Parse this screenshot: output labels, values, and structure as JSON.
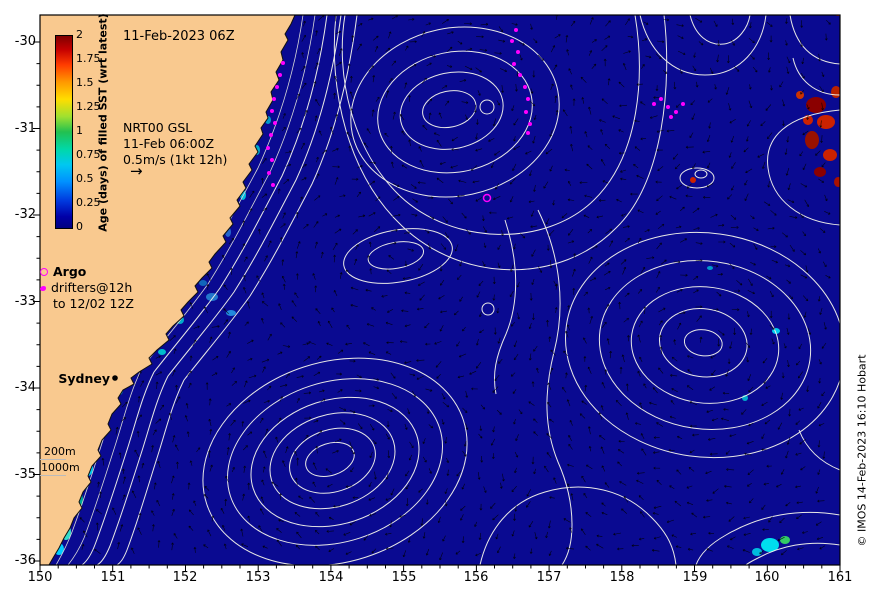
{
  "header": {
    "date": "11-Feb-2023 06Z"
  },
  "colorbar": {
    "title": "Age (days) of filled SST (wrt latest)",
    "ticks": [
      "2",
      "1.75",
      "1.5",
      "1.25",
      "1",
      "0.75",
      "0.5",
      "0.25",
      "0"
    ]
  },
  "info": {
    "model": "NRT00 GSL",
    "time": "11-Feb 06:00Z",
    "scale": "0.5m/s (1kt 12h)",
    "arrow_glyph": "→"
  },
  "legend": {
    "argo_label": "Argo",
    "drifters_label": "drifters@12h",
    "drifters_range": "to 12/02 12Z"
  },
  "map_labels": {
    "city": "Sydney",
    "isobath_200": "200m",
    "isobath_1000": "1000m"
  },
  "credit": "© IMOS 14-Feb-2023 16:10 Hobart",
  "axes": {
    "x_label_values": [
      "150",
      "151",
      "152",
      "153",
      "154",
      "155",
      "156",
      "157",
      "158",
      "159",
      "160",
      "161"
    ],
    "y_label_values": [
      "-30",
      "-31",
      "-32",
      "-33",
      "-34",
      "-35",
      "-36"
    ],
    "x_range": [
      150,
      161
    ],
    "y_range": [
      -36,
      -30
    ]
  },
  "colors": {
    "land": "#f9c98f",
    "ocean": "#0a0a91",
    "contour": "#f5f5eb",
    "bathymetry": "#d8d8d8",
    "drifter": "#ff00ff",
    "vector": "#000000",
    "sst_age_hot": "#990000",
    "sst_age_cold": "#00ccff"
  }
}
